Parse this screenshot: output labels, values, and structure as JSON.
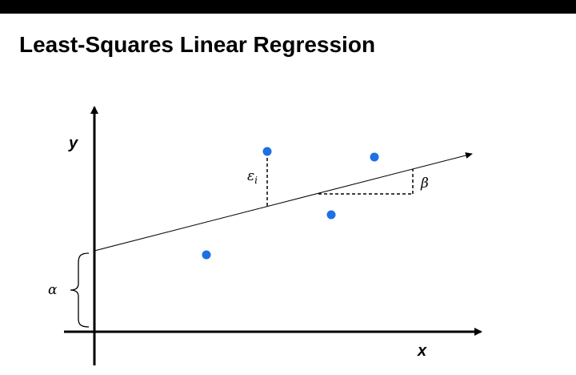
{
  "slide": {
    "title": "Least-Squares Linear Regression"
  },
  "diagram": {
    "x_axis_label": "x",
    "y_axis_label": "y",
    "residual_label": "ε",
    "residual_subscript": "i",
    "slope_label": "β",
    "intercept_label": "α"
  },
  "colors": {
    "top_bar": "#000000",
    "point": "#1f6fe5",
    "ink": "#000000"
  }
}
